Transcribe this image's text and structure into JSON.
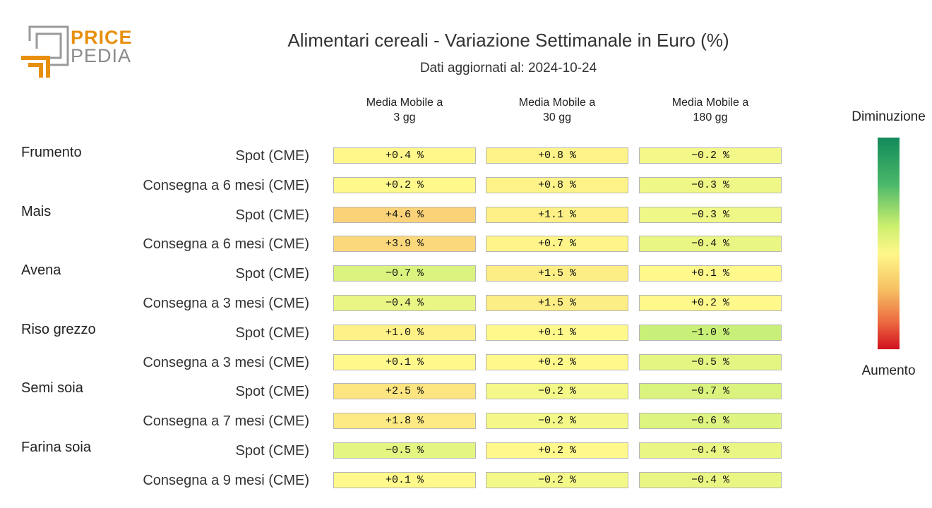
{
  "logo": {
    "price": "PRICE",
    "pedia": "PEDIA"
  },
  "colors": {
    "logo_orange": "#e8900e",
    "logo_gray": "#8a8a8a"
  },
  "chart_data": {
    "type": "heatmap",
    "title": "Alimentari cereali - Variazione Settimanale in Euro (%)",
    "subtitle": "Dati aggiornati al: 2024-10-24",
    "columns": [
      "Media Mobile a 3 gg",
      "Media Mobile a 30 gg",
      "Media Mobile a 180 gg"
    ],
    "column_lines": [
      [
        "Media Mobile a",
        "3 gg"
      ],
      [
        "Media Mobile a",
        "30 gg"
      ],
      [
        "Media Mobile a",
        "180 gg"
      ]
    ],
    "groups": [
      {
        "name": "Frumento",
        "rows": [
          {
            "label": "Spot (CME)",
            "values": [
              0.4,
              0.8,
              -0.2
            ]
          },
          {
            "label": "Consegna a 6 mesi (CME)",
            "values": [
              0.2,
              0.8,
              -0.3
            ]
          }
        ]
      },
      {
        "name": "Mais",
        "rows": [
          {
            "label": "Spot (CME)",
            "values": [
              4.6,
              1.1,
              -0.3
            ]
          },
          {
            "label": "Consegna a 6 mesi (CME)",
            "values": [
              3.9,
              0.7,
              -0.4
            ]
          }
        ]
      },
      {
        "name": "Avena",
        "rows": [
          {
            "label": "Spot (CME)",
            "values": [
              -0.7,
              1.5,
              0.1
            ]
          },
          {
            "label": "Consegna a 3 mesi (CME)",
            "values": [
              -0.4,
              1.5,
              0.2
            ]
          }
        ]
      },
      {
        "name": "Riso grezzo",
        "rows": [
          {
            "label": "Spot (CME)",
            "values": [
              1.0,
              0.1,
              -1.0
            ]
          },
          {
            "label": "Consegna a 3 mesi (CME)",
            "values": [
              0.1,
              0.2,
              -0.5
            ]
          }
        ]
      },
      {
        "name": "Semi soia",
        "rows": [
          {
            "label": "Spot (CME)",
            "values": [
              2.5,
              -0.2,
              -0.7
            ]
          },
          {
            "label": "Consegna a 7 mesi (CME)",
            "values": [
              1.8,
              -0.2,
              -0.6
            ]
          }
        ]
      },
      {
        "name": "Farina soia",
        "rows": [
          {
            "label": "Spot (CME)",
            "values": [
              -0.5,
              0.2,
              -0.4
            ]
          },
          {
            "label": "Consegna a 9 mesi (CME)",
            "values": [
              0.1,
              -0.2,
              -0.4
            ]
          }
        ]
      }
    ],
    "value_suffix": " %",
    "legend": {
      "top_label": "Diminuzione",
      "bottom_label": "Aumento"
    }
  }
}
